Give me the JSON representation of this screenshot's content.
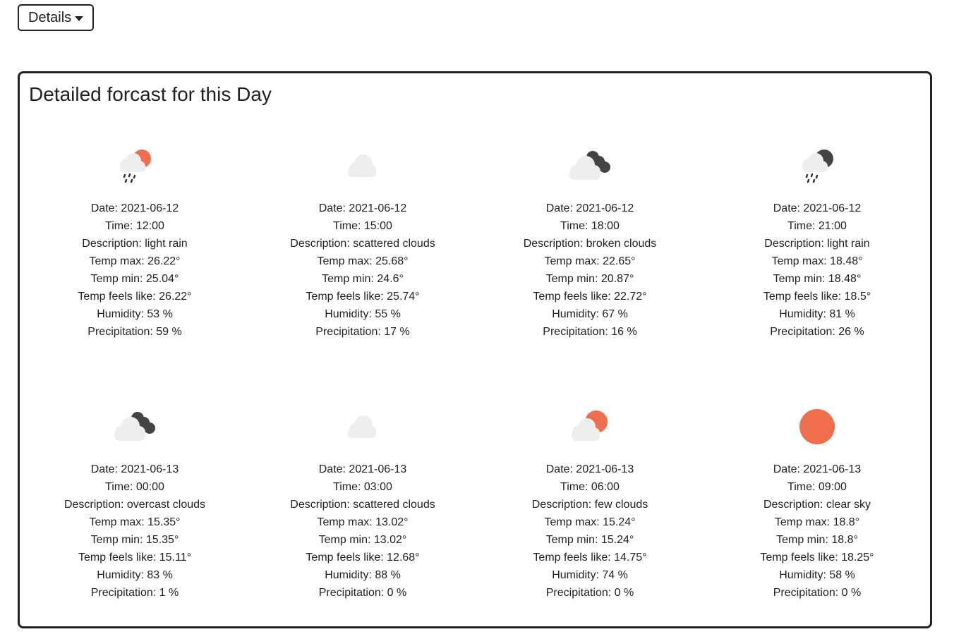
{
  "header": {
    "details_label": "Details"
  },
  "panel": {
    "title": "Detailed forcast for this Day"
  },
  "labels": {
    "date": "Date: ",
    "time": "Time: ",
    "description": "Description: ",
    "temp_max": "Temp max: ",
    "temp_min": "Temp min: ",
    "feels_like": "Temp feels like: ",
    "humidity": "Humidity: ",
    "precipitation": "Precipitation: "
  },
  "colors": {
    "sun": "#ee6e4e",
    "moon": "#444444",
    "cloud": "#eeeeee",
    "rain": "#333333"
  },
  "forecasts": [
    {
      "icon": "rain-day-icon",
      "date": "2021-06-12",
      "time": "12:00",
      "description": "light rain",
      "temp_max": "26.22°",
      "temp_min": "25.04°",
      "feels_like": "26.22°",
      "humidity": "53 %",
      "precipitation": "59 %"
    },
    {
      "icon": "scattered-clouds-icon",
      "date": "2021-06-12",
      "time": "15:00",
      "description": "scattered clouds",
      "temp_max": "25.68°",
      "temp_min": "24.6°",
      "feels_like": "25.74°",
      "humidity": "55 %",
      "precipitation": "17 %"
    },
    {
      "icon": "broken-clouds-icon",
      "date": "2021-06-12",
      "time": "18:00",
      "description": "broken clouds",
      "temp_max": "22.65°",
      "temp_min": "20.87°",
      "feels_like": "22.72°",
      "humidity": "67 %",
      "precipitation": "16 %"
    },
    {
      "icon": "rain-night-icon",
      "date": "2021-06-12",
      "time": "21:00",
      "description": "light rain",
      "temp_max": "18.48°",
      "temp_min": "18.48°",
      "feels_like": "18.5°",
      "humidity": "81 %",
      "precipitation": "26 %"
    },
    {
      "icon": "overcast-clouds-night-icon",
      "date": "2021-06-13",
      "time": "00:00",
      "description": "overcast clouds",
      "temp_max": "15.35°",
      "temp_min": "15.35°",
      "feels_like": "15.11°",
      "humidity": "83 %",
      "precipitation": "1 %"
    },
    {
      "icon": "scattered-clouds-icon",
      "date": "2021-06-13",
      "time": "03:00",
      "description": "scattered clouds",
      "temp_max": "13.02°",
      "temp_min": "13.02°",
      "feels_like": "12.68°",
      "humidity": "88 %",
      "precipitation": "0 %"
    },
    {
      "icon": "few-clouds-day-icon",
      "date": "2021-06-13",
      "time": "06:00",
      "description": "few clouds",
      "temp_max": "15.24°",
      "temp_min": "15.24°",
      "feels_like": "14.75°",
      "humidity": "74 %",
      "precipitation": "0 %"
    },
    {
      "icon": "clear-sky-icon",
      "date": "2021-06-13",
      "time": "09:00",
      "description": "clear sky",
      "temp_max": "18.8°",
      "temp_min": "18.8°",
      "feels_like": "18.25°",
      "humidity": "58 %",
      "precipitation": "0 %"
    }
  ]
}
